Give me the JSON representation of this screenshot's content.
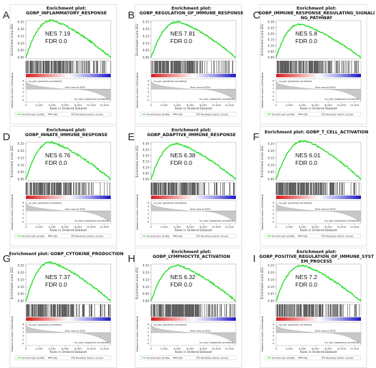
{
  "figure": {
    "panels": [
      {
        "letter": "A",
        "title_top": "Enrichment plot:",
        "title_lines": [
          "GOBP_INFLAMMATORY_RESPONSE"
        ],
        "nes": "NES 7.19",
        "fdr": "FDR 0.0",
        "ymax": 0.25,
        "yticks": [
          "0.25",
          "0.20",
          "0.15",
          "0.10",
          "0.05",
          "0.00"
        ],
        "peak": 0.26,
        "peak_at": 3900,
        "color": "#22dd22"
      },
      {
        "letter": "B",
        "title_top": "Enrichment plot:",
        "title_lines": [
          "GOBP_REGULATION_OF_IMMUNE_RESPONSE"
        ],
        "nes": "NES 7.81",
        "fdr": "FDR 0.0",
        "ymax": 0.25,
        "yticks": [
          "0.25",
          "0.20",
          "0.15",
          "0.10",
          "0.05",
          "0.00"
        ],
        "peak": 0.25,
        "peak_at": 4100,
        "color": "#22dd22"
      },
      {
        "letter": "C",
        "title_top": "Enrichment plot:",
        "title_lines": [
          "GOBP_IMMUNE_RESPONSE_REGULATING_SIGNALI",
          "NG_PATHWAY"
        ],
        "nes": "NES 5.8",
        "fdr": "FDR 0.0",
        "ymax": 0.3,
        "yticks": [
          "0.30",
          "0.25",
          "0.20",
          "0.15",
          "0.10",
          "0.05",
          "0.00"
        ],
        "peak": 0.28,
        "peak_at": 3600,
        "color": "#22dd22"
      },
      {
        "letter": "D",
        "title_top": "Enrichment plot:",
        "title_lines": [
          "GOBP_INNATE_IMMUNE_RESPONSE"
        ],
        "nes": "NES 6.76",
        "fdr": "FDR 0.0",
        "ymax": 0.25,
        "yticks": [
          "0.25",
          "0.20",
          "0.15",
          "0.10",
          "0.05",
          "0.00"
        ],
        "peak": 0.26,
        "peak_at": 3800,
        "color": "#22dd22"
      },
      {
        "letter": "E",
        "title_top": "Enrichment plot:",
        "title_lines": [
          "GOBP_ADAPTIVE_IMMUNE_RESPONSE"
        ],
        "nes": "NES 6.38",
        "fdr": "FDR 0.0",
        "ymax": 0.3,
        "yticks": [
          "0.30",
          "0.25",
          "0.20",
          "0.15",
          "0.10",
          "0.05",
          "0.00"
        ],
        "peak": 0.3,
        "peak_at": 3900,
        "color": "#22dd22"
      },
      {
        "letter": "F",
        "title_top": "",
        "title_lines": [
          "Enrichment plot: GOBP_T_CELL_ACTIVATION"
        ],
        "nes": "NES 6.01",
        "fdr": "FDR 0.0",
        "ymax": 0.25,
        "yticks": [
          "0.25",
          "0.20",
          "0.15",
          "0.10",
          "0.05",
          "0.00"
        ],
        "peak": 0.27,
        "peak_at": 4300,
        "color": "#22dd22"
      },
      {
        "letter": "G",
        "title_top": "",
        "title_lines": [
          "Enrichment plot: GOBP_CYTOKINE_PRODUCTION"
        ],
        "nes": "NES 7.37",
        "fdr": "FDR 0.0",
        "ymax": 0.25,
        "yticks": [
          "0.25",
          "0.20",
          "0.15",
          "0.10",
          "0.05",
          "0.00"
        ],
        "peak": 0.27,
        "peak_at": 3700,
        "color": "#22dd22"
      },
      {
        "letter": "H",
        "title_top": "Enrichment plot:",
        "title_lines": [
          "GOBP_LYMPHOCYTE_ACTIVATION"
        ],
        "nes": "NES 6.32",
        "fdr": "FDR 0.0",
        "ymax": 0.25,
        "yticks": [
          "0.25",
          "0.20",
          "0.15",
          "0.10",
          "0.05",
          "0.00"
        ],
        "peak": 0.25,
        "peak_at": 4000,
        "color": "#22dd22"
      },
      {
        "letter": "I",
        "title_top": "Enrichment plot:",
        "title_lines": [
          "GOBP_POSITIVE_REGULATION_OF_IMMUNE_SYST",
          "EM_PROCESS"
        ],
        "nes": "NES 7.2",
        "fdr": "FDR 0.0",
        "ymax": 0.25,
        "yticks": [
          "0.25",
          "0.20",
          "0.15",
          "0.10",
          "0.05",
          "0.00"
        ],
        "peak": 0.25,
        "peak_at": 3900,
        "color": "#22dd22"
      }
    ],
    "common": {
      "ylabel_top": "Enrichment score (ES)",
      "ylabel_bottom": "Ranked list metric (PreRanked)",
      "xlabel": "Rank in Ordered Dataset",
      "xticks": [
        "0",
        "2,000",
        "4,000",
        "6,000",
        "8,000",
        "10,000",
        "12,000"
      ],
      "pos_label": "'na_pos' (positively correlated)",
      "neg_label": "'na_neg' (negatively correlated)",
      "zero_cross": "Zero cross at 6329",
      "legend": [
        "Enrichment profile",
        "Hits",
        "Ranking metric scores"
      ],
      "metric_yticks": [
        "6",
        "4",
        "2",
        "0",
        "-2",
        "-4"
      ]
    }
  },
  "chart_data": {
    "type": "line",
    "xlabel": "Rank in Ordered Dataset",
    "ylabel": "Enrichment score (ES)",
    "xlim": [
      0,
      13000
    ],
    "series": [
      {
        "name": "GOBP_INFLAMMATORY_RESPONSE",
        "NES": 7.19,
        "FDR": 0.0,
        "peak_es": 0.26
      },
      {
        "name": "GOBP_REGULATION_OF_IMMUNE_RESPONSE",
        "NES": 7.81,
        "FDR": 0.0,
        "peak_es": 0.25
      },
      {
        "name": "GOBP_IMMUNE_RESPONSE_REGULATING_SIGNALING_PATHWAY",
        "NES": 5.8,
        "FDR": 0.0,
        "peak_es": 0.28
      },
      {
        "name": "GOBP_INNATE_IMMUNE_RESPONSE",
        "NES": 6.76,
        "FDR": 0.0,
        "peak_es": 0.26
      },
      {
        "name": "GOBP_ADAPTIVE_IMMUNE_RESPONSE",
        "NES": 6.38,
        "FDR": 0.0,
        "peak_es": 0.3
      },
      {
        "name": "GOBP_T_CELL_ACTIVATION",
        "NES": 6.01,
        "FDR": 0.0,
        "peak_es": 0.27
      },
      {
        "name": "GOBP_CYTOKINE_PRODUCTION",
        "NES": 7.37,
        "FDR": 0.0,
        "peak_es": 0.27
      },
      {
        "name": "GOBP_LYMPHOCYTE_ACTIVATION",
        "NES": 6.32,
        "FDR": 0.0,
        "peak_es": 0.25
      },
      {
        "name": "GOBP_POSITIVE_REGULATION_OF_IMMUNE_SYSTEM_PROCESS",
        "NES": 7.2,
        "FDR": 0.0,
        "peak_es": 0.25
      }
    ]
  }
}
